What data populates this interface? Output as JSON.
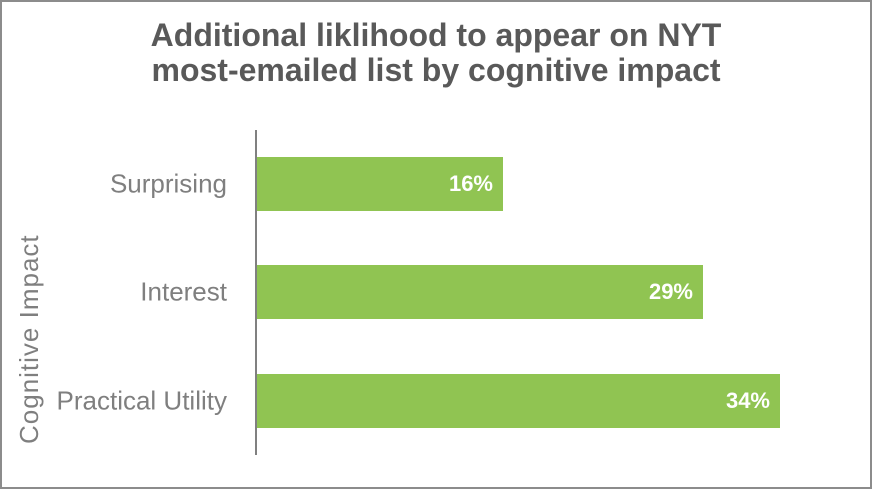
{
  "chart_data": {
    "type": "bar",
    "orientation": "horizontal",
    "title": "Additional liklihood to appear on NYT most-emailed list by cognitive impact",
    "title_lines": [
      "Additional liklihood to appear on NYT",
      "most-emailed list by cognitive impact"
    ],
    "xlabel": "",
    "ylabel": "Cognitive Impact",
    "categories": [
      "Surprising",
      "Interest",
      "Practical Utility"
    ],
    "values": [
      16,
      29,
      34
    ],
    "value_labels": [
      "16%",
      "29%",
      "34%"
    ],
    "xlim": [
      0,
      40
    ],
    "grid": false,
    "legend": false,
    "value_label_position": "inside-end",
    "colors": {
      "bar": "#90C452",
      "value_label": "#FFFFFF",
      "category_label": "#7F7F7F",
      "axis_title": "#7F7F7F",
      "title": "#595959",
      "axis_line": "#808080",
      "frame_border": "#8C8C8C",
      "background": "#FFFFFF"
    }
  }
}
